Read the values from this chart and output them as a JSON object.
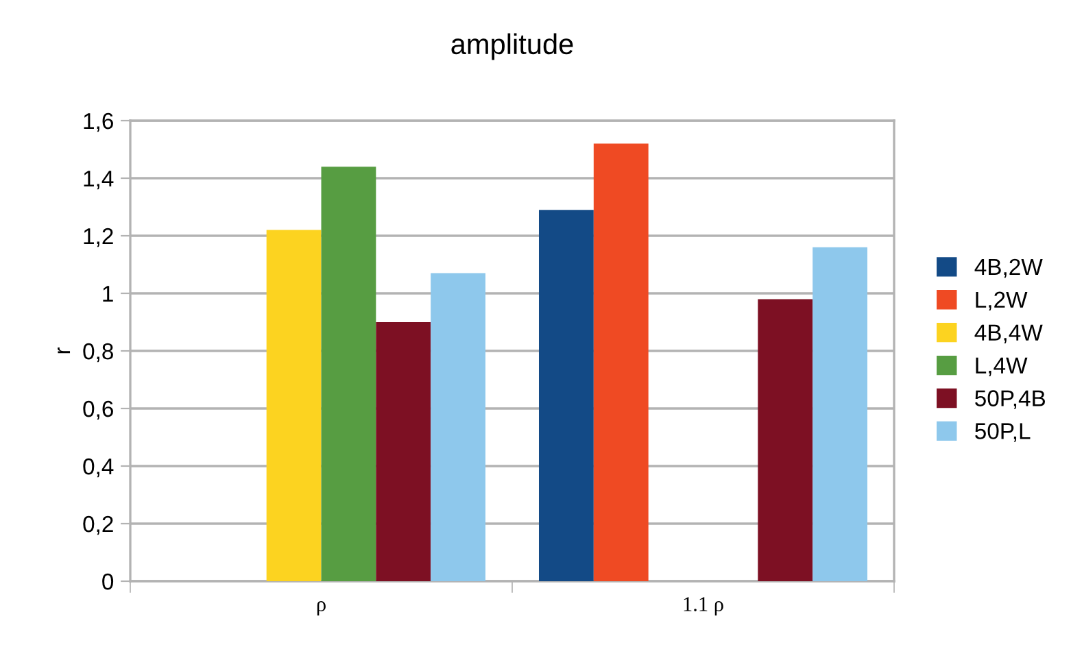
{
  "chart_data": {
    "type": "bar",
    "title": "amplitude",
    "ylabel": "r",
    "categories": [
      "ρ",
      "1.1 ρ"
    ],
    "series": [
      {
        "name": "4B,2W",
        "color": "#134a86",
        "values": [
          null,
          1.29
        ]
      },
      {
        "name": "L,2W",
        "color": "#ef4a23",
        "values": [
          null,
          1.52
        ]
      },
      {
        "name": "4B,4W",
        "color": "#fcd320",
        "values": [
          1.22,
          null
        ]
      },
      {
        "name": "L,4W",
        "color": "#579d42",
        "values": [
          1.44,
          null
        ]
      },
      {
        "name": "50P,4B",
        "color": "#7d1023",
        "values": [
          0.9,
          0.98
        ]
      },
      {
        "name": "50P,L",
        "color": "#8ec8ec",
        "values": [
          1.07,
          1.16
        ]
      }
    ],
    "ylim": [
      0,
      1.6
    ],
    "yticks": [
      0,
      {
        "value": 0.2,
        "label": "0,2"
      },
      {
        "value": 0.4,
        "label": "0,4"
      },
      {
        "value": 0.6,
        "label": "0,6"
      },
      {
        "value": 0.8,
        "label": "0,8"
      },
      1,
      {
        "value": 1.2,
        "label": "1,2"
      },
      {
        "value": 1.4,
        "label": "1,4"
      },
      {
        "value": 1.6,
        "label": "1,6"
      }
    ],
    "grid": "y",
    "legend": "right"
  }
}
